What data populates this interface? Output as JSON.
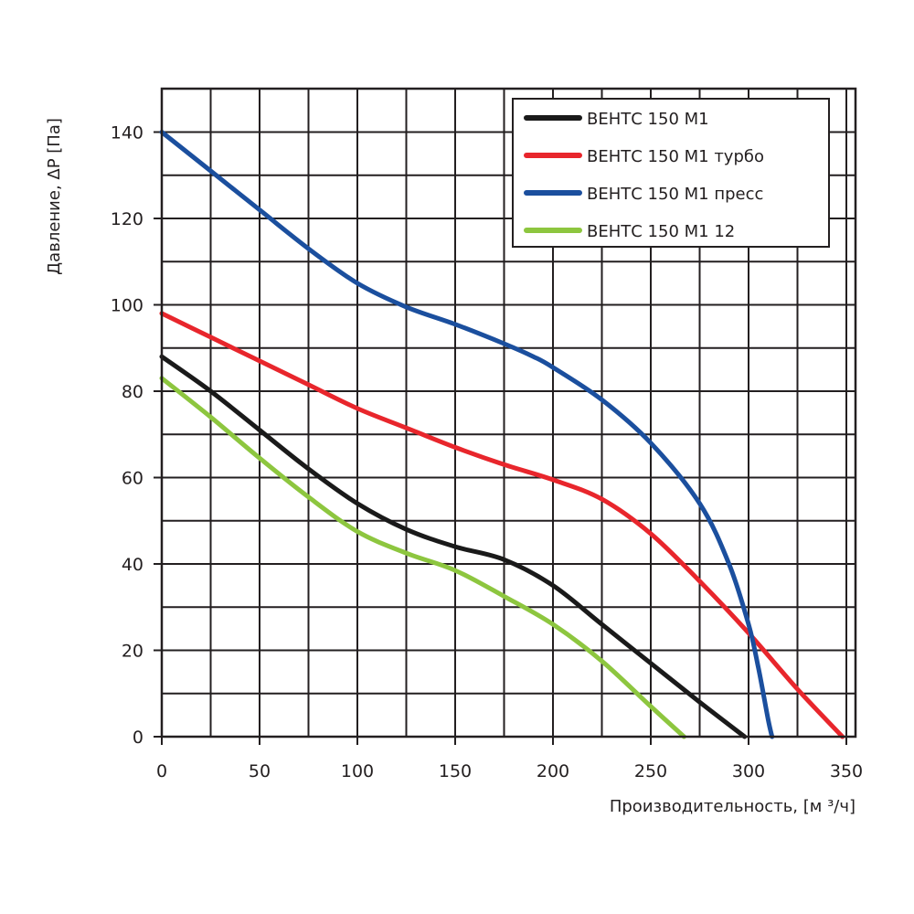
{
  "chart_data": {
    "type": "line",
    "xlabel": "Производительность, [м ³/ч]",
    "ylabel": "Давление, ΔP [Па]",
    "xlim": [
      0,
      350
    ],
    "ylim": [
      0,
      150
    ],
    "x_ticks": [
      "0",
      "50",
      "100",
      "150",
      "200",
      "250",
      "300",
      "350"
    ],
    "y_ticks": [
      "0",
      "20",
      "40",
      "60",
      "80",
      "100",
      "120",
      "140"
    ],
    "grid": true,
    "legend_position": "top-right",
    "series": [
      {
        "name": "ВЕНТС 150 М1",
        "color": "#1a1a1a",
        "points": [
          [
            0,
            88
          ],
          [
            25,
            80
          ],
          [
            50,
            71
          ],
          [
            75,
            62
          ],
          [
            100,
            54
          ],
          [
            125,
            48
          ],
          [
            150,
            44
          ],
          [
            175,
            41
          ],
          [
            200,
            35
          ],
          [
            225,
            26
          ],
          [
            250,
            17
          ],
          [
            275,
            8
          ],
          [
            298,
            0
          ]
        ]
      },
      {
        "name": "ВЕНТС 150 М1 турбо",
        "color": "#e8262c",
        "points": [
          [
            0,
            98
          ],
          [
            25,
            92.5
          ],
          [
            50,
            87
          ],
          [
            75,
            81.5
          ],
          [
            100,
            76
          ],
          [
            125,
            71.5
          ],
          [
            150,
            67
          ],
          [
            175,
            63
          ],
          [
            200,
            59.5
          ],
          [
            225,
            55
          ],
          [
            250,
            47
          ],
          [
            275,
            36
          ],
          [
            300,
            24
          ],
          [
            325,
            11
          ],
          [
            348,
            0
          ]
        ]
      },
      {
        "name": "ВЕНТС 150 М1 пресс",
        "color": "#1b4f9e",
        "points": [
          [
            0,
            140
          ],
          [
            25,
            131
          ],
          [
            50,
            122
          ],
          [
            75,
            113
          ],
          [
            100,
            105
          ],
          [
            125,
            99.5
          ],
          [
            150,
            95.5
          ],
          [
            175,
            91
          ],
          [
            190,
            88
          ],
          [
            200,
            85.5
          ],
          [
            225,
            78
          ],
          [
            250,
            68
          ],
          [
            275,
            54
          ],
          [
            290,
            40
          ],
          [
            300,
            26
          ],
          [
            305,
            16
          ],
          [
            310,
            4
          ],
          [
            312,
            0
          ]
        ]
      },
      {
        "name": "ВЕНТС 150 М1  12",
        "color": "#8dc63f",
        "points": [
          [
            0,
            83
          ],
          [
            25,
            74
          ],
          [
            50,
            64.5
          ],
          [
            75,
            55.5
          ],
          [
            100,
            47.5
          ],
          [
            125,
            42.5
          ],
          [
            150,
            38.5
          ],
          [
            175,
            32.5
          ],
          [
            200,
            26
          ],
          [
            225,
            17.5
          ],
          [
            250,
            7
          ],
          [
            267,
            0
          ]
        ]
      }
    ]
  }
}
